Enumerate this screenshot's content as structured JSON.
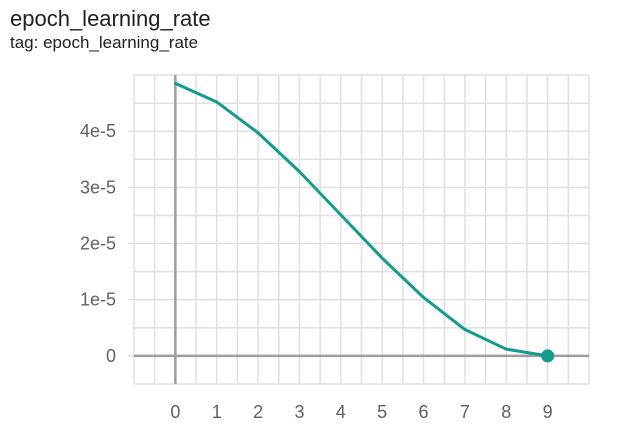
{
  "header": {
    "title": "epoch_learning_rate",
    "subtitle": "tag: epoch_learning_rate"
  },
  "colors": {
    "series": "#129c8a",
    "grid": "#e0e0e0",
    "axis": "#9e9e9e",
    "tick_text": "#616161"
  },
  "chart_data": {
    "type": "line",
    "title": "epoch_learning_rate",
    "subtitle": "tag: epoch_learning_rate",
    "xlabel": "",
    "ylabel": "",
    "xlim": [
      -1,
      10
    ],
    "ylim": [
      -5e-06,
      5e-05
    ],
    "x_ticks": [
      0,
      1,
      2,
      3,
      4,
      5,
      6,
      7,
      8,
      9
    ],
    "x_tick_labels": [
      "0",
      "1",
      "2",
      "3",
      "4",
      "5",
      "6",
      "7",
      "8",
      "9"
    ],
    "y_ticks": [
      0,
      1e-05,
      2e-05,
      3e-05,
      4e-05
    ],
    "y_tick_labels": [
      "0",
      "1e-5",
      "2e-5",
      "3e-5",
      "4e-5"
    ],
    "grid": true,
    "series": [
      {
        "x": [
          0,
          1,
          2,
          3,
          4,
          5,
          6,
          7,
          8,
          9
        ],
        "values": [
          4.85e-05,
          4.52e-05,
          3.97e-05,
          3.28e-05,
          2.51e-05,
          1.74e-05,
          1.04e-05,
          4.7e-06,
          1.2e-06,
          0.0
        ]
      }
    ]
  }
}
